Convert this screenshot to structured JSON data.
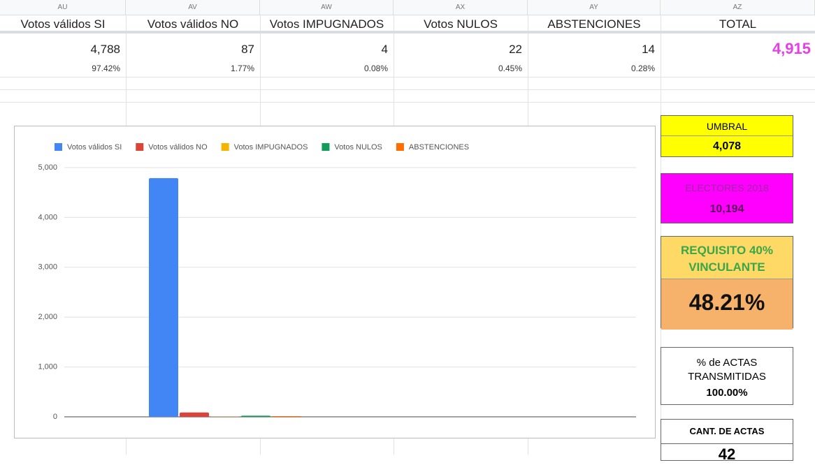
{
  "sheet": {
    "column_letters": [
      "AU",
      "AV",
      "AW",
      "AX",
      "AY",
      "AZ"
    ],
    "headers": [
      "Votos válidos SI",
      "Votos válidos NO",
      "Votos IMPUGNADOS",
      "Votos NULOS",
      "ABSTENCIONES",
      "TOTAL"
    ],
    "counts": [
      "4,788",
      "87",
      "4",
      "22",
      "14"
    ],
    "percentages": [
      "97.42%",
      "1.77%",
      "0.08%",
      "0.45%",
      "0.28%"
    ],
    "total": "4,915"
  },
  "panels": {
    "umbral": {
      "label": "UMBRAL",
      "value": "4,078"
    },
    "electores": {
      "label": "ELECTORES 2018",
      "value": "10,194"
    },
    "requisito": {
      "label": "REQUISITO 40% VINCULANTE",
      "value": "48.21%"
    },
    "actas": {
      "label": "% de ACTAS TRANSMITIDAS",
      "value": "100.00%"
    },
    "cantidad": {
      "label": "CANT. DE ACTAS",
      "value": "42"
    }
  },
  "chart_data": {
    "type": "bar",
    "categories": [
      null
    ],
    "series": [
      {
        "name": "Votos válidos SI",
        "color": "#4285f4",
        "values": [
          4788
        ]
      },
      {
        "name": "Votos válidos NO",
        "color": "#db4437",
        "values": [
          87
        ]
      },
      {
        "name": "Votos IMPUGNADOS",
        "color": "#f4b400",
        "values": [
          4
        ]
      },
      {
        "name": "Votos NULOS",
        "color": "#0f9d58",
        "values": [
          22
        ]
      },
      {
        "name": "ABSTENCIONES",
        "color": "#ff6d01",
        "values": [
          14
        ]
      }
    ],
    "ylim": [
      0,
      5000
    ],
    "yticks": [
      0,
      {
        "value": 1000,
        "label": "1,000"
      },
      {
        "value": 2000,
        "label": "2,000"
      },
      {
        "value": 3000,
        "label": "3,000"
      },
      {
        "value": 4000,
        "label": "4,000"
      },
      {
        "value": 5000,
        "label": "5,000"
      }
    ],
    "grid": true,
    "legend": "top"
  }
}
